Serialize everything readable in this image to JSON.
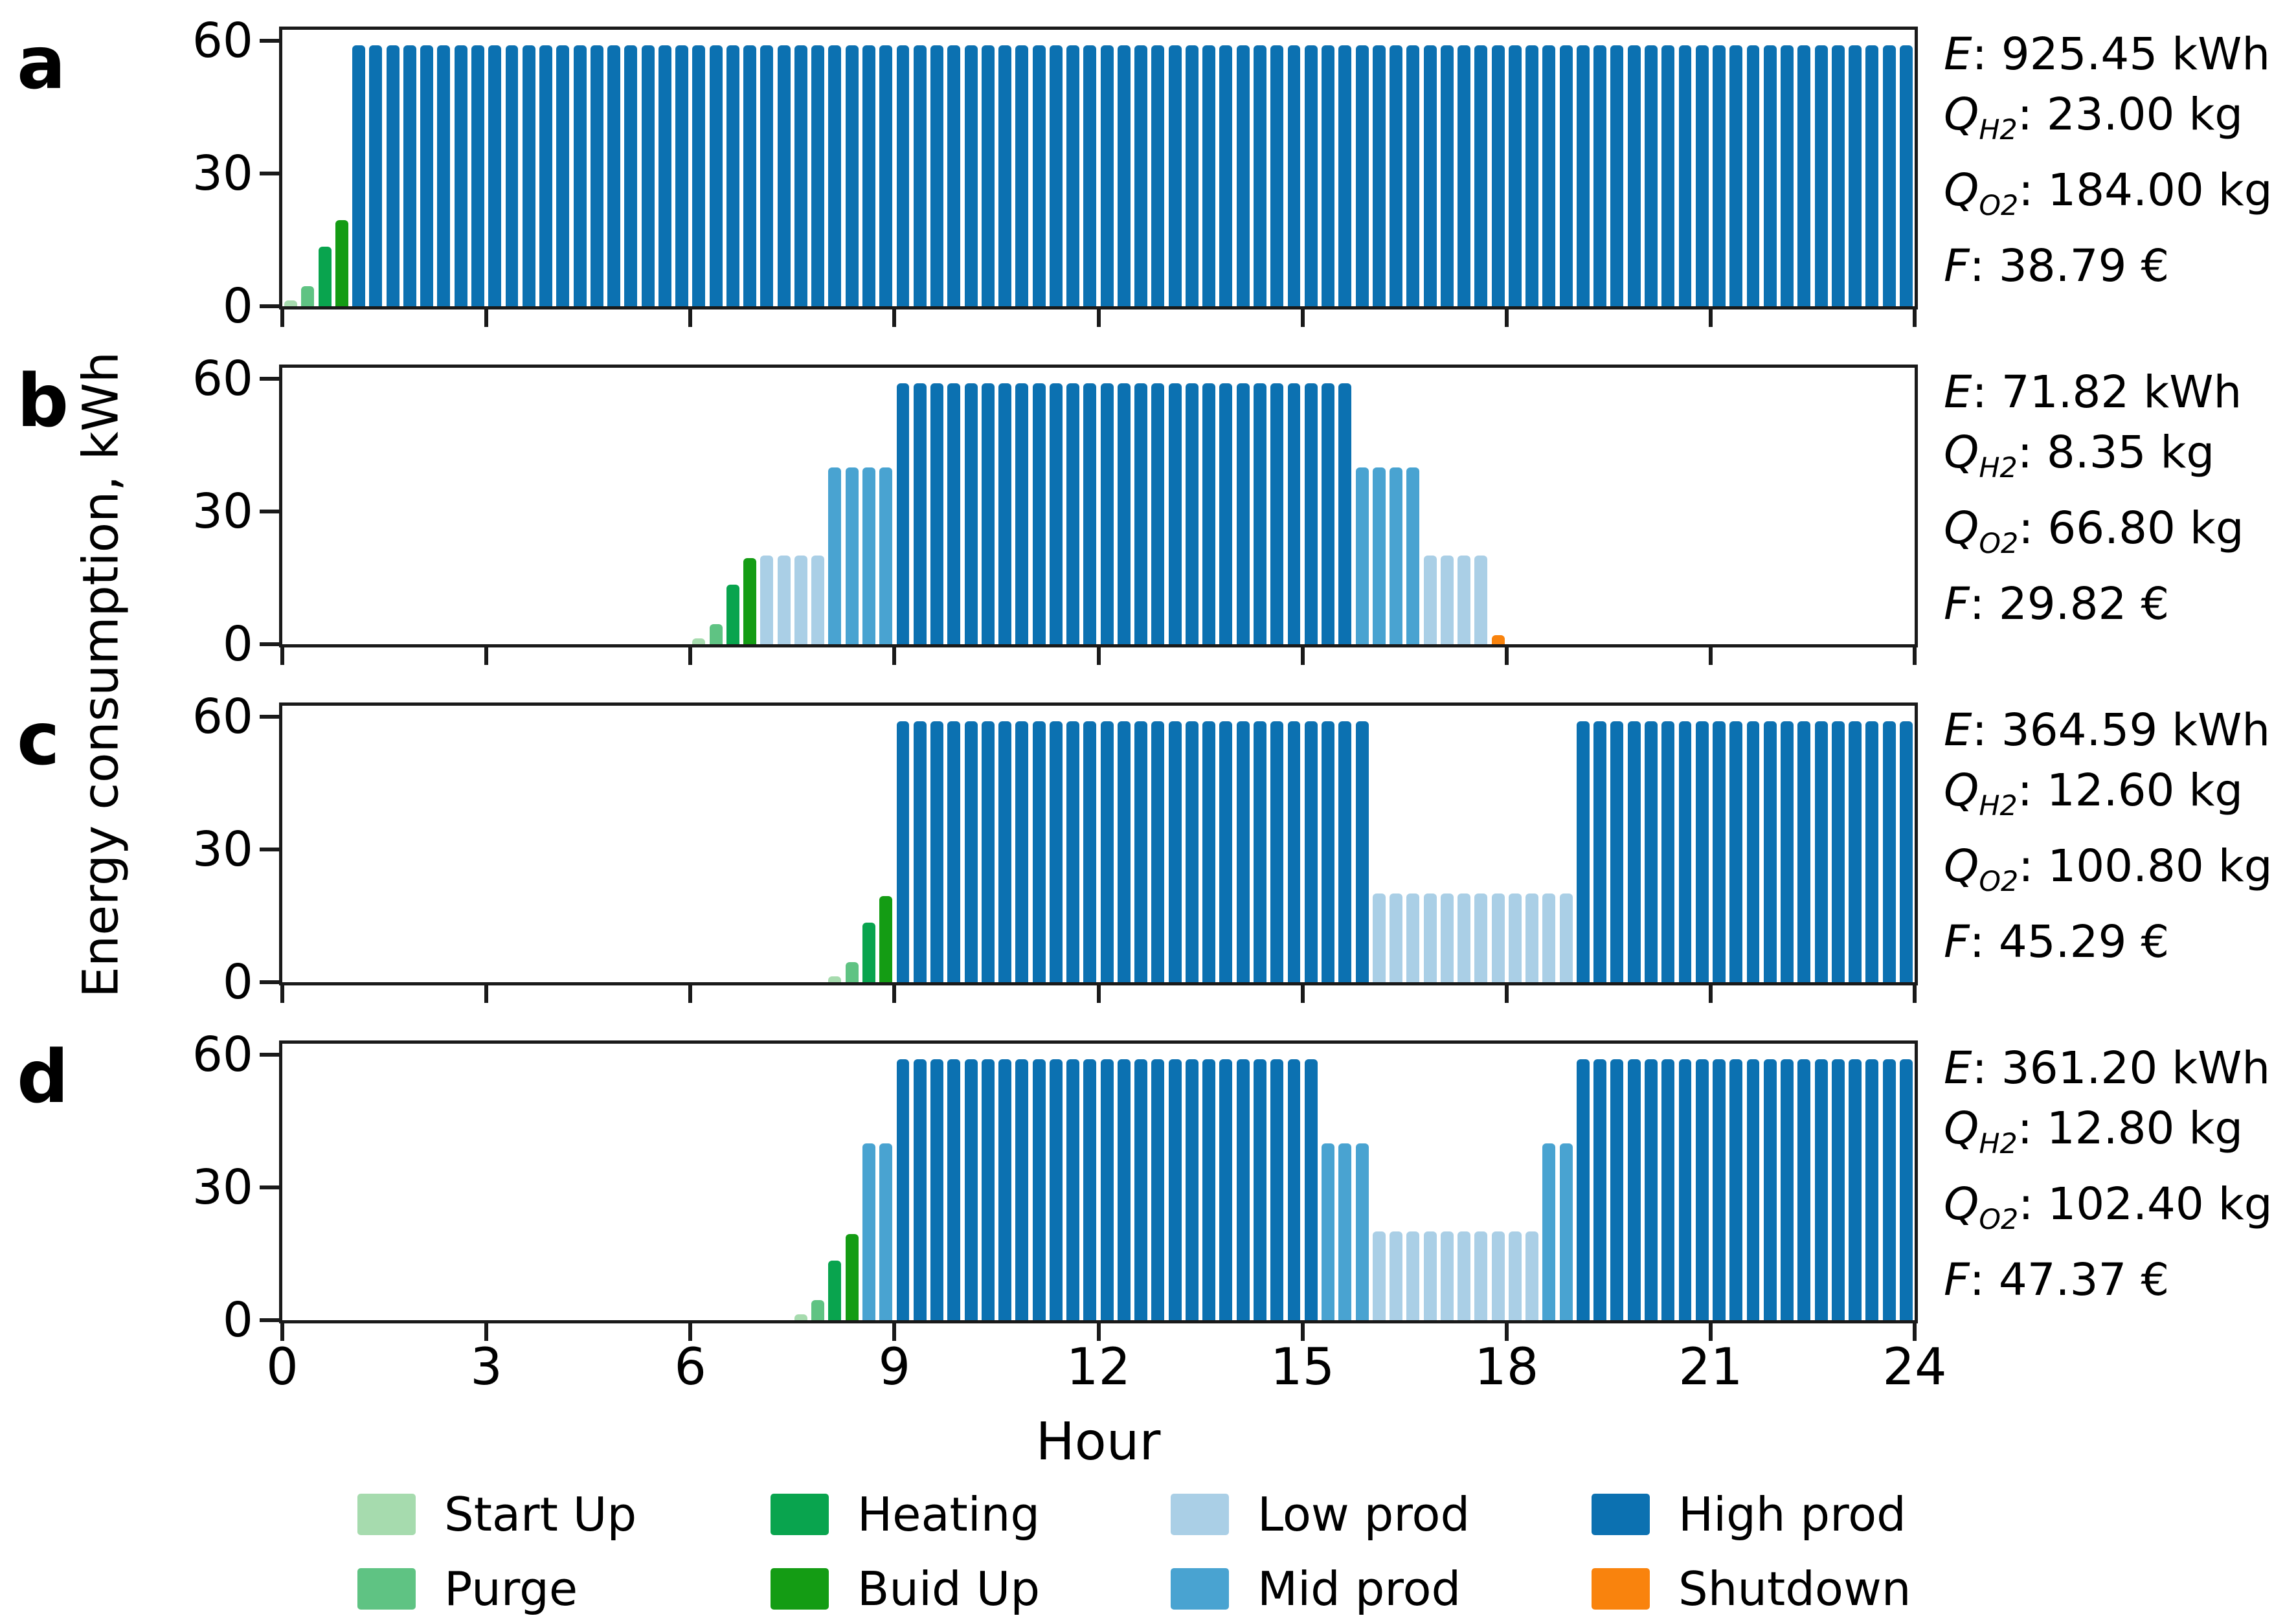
{
  "figure": {
    "xlabel": "Hour",
    "ylabel": "Energy consumption, kWh",
    "x_ticks": [
      0,
      3,
      6,
      9,
      12,
      15,
      18,
      21,
      24
    ],
    "y_ticks": [
      0,
      30,
      60
    ],
    "frame_color": "#1a1a1a",
    "background": "#ffffff"
  },
  "states": {
    "startup": {
      "label": "Start Up",
      "color": "#a6dbae",
      "value": 1.3
    },
    "purge": {
      "label": "Purge",
      "color": "#5fc383",
      "value": 4.5
    },
    "heating": {
      "label": "Heating",
      "color": "#09a44e",
      "value": 13.5
    },
    "buildup": {
      "label": "Buid Up",
      "color": "#149c14",
      "value": 19.5
    },
    "low": {
      "label": "Low prod",
      "color": "#aacfe6",
      "value": 20
    },
    "mid": {
      "label": "Mid prod",
      "color": "#49a3d1",
      "value": 40
    },
    "high": {
      "label": "High prod",
      "color": "#0c71b1",
      "value": 59
    },
    "shutdown": {
      "label": "Shutdown",
      "color": "#f9830d",
      "value": 2
    }
  },
  "legend": {
    "columns": [
      [
        "startup",
        "purge"
      ],
      [
        "heating",
        "buildup"
      ],
      [
        "low",
        "mid"
      ],
      [
        "high",
        "shutdown"
      ]
    ]
  },
  "chart_data": {
    "type": "bar",
    "x_step_hours": 0.25,
    "xlim": [
      0,
      24
    ],
    "ylim": [
      0,
      62.5
    ],
    "xlabel": "Hour",
    "ylabel": "Energy consumption, kWh",
    "legend_position": "bottom",
    "grid": false,
    "state_values_kWh": {
      "startup": 1.3,
      "purge": 4.5,
      "heating": 13.5,
      "buildup": 19.5,
      "low": 20,
      "mid": 40,
      "high": 59,
      "shutdown": 2
    },
    "panels": [
      {
        "label": "a",
        "annotations": [
          {
            "symbol": "E",
            "subscript": "",
            "value": "925.45 kWh"
          },
          {
            "symbol": "Q",
            "subscript": "H2",
            "value": "23.00 kg"
          },
          {
            "symbol": "Q",
            "subscript": "O2",
            "value": "184.00 kg"
          },
          {
            "symbol": "F",
            "subscript": "",
            "value": "38.79 €"
          }
        ],
        "segments": [
          {
            "state": "startup",
            "start": 0,
            "end": 0.25
          },
          {
            "state": "purge",
            "start": 0.25,
            "end": 0.5
          },
          {
            "state": "heating",
            "start": 0.5,
            "end": 0.75
          },
          {
            "state": "buildup",
            "start": 0.75,
            "end": 1
          },
          {
            "state": "high",
            "start": 1,
            "end": 24
          }
        ]
      },
      {
        "label": "b",
        "annotations": [
          {
            "symbol": "E",
            "subscript": "",
            "value": "71.82 kWh"
          },
          {
            "symbol": "Q",
            "subscript": "H2",
            "value": "8.35 kg"
          },
          {
            "symbol": "Q",
            "subscript": "O2",
            "value": "66.80 kg"
          },
          {
            "symbol": "F",
            "subscript": "",
            "value": "29.82 €"
          }
        ],
        "segments": [
          {
            "state": "startup",
            "start": 6,
            "end": 6.25
          },
          {
            "state": "purge",
            "start": 6.25,
            "end": 6.5
          },
          {
            "state": "heating",
            "start": 6.5,
            "end": 6.75
          },
          {
            "state": "buildup",
            "start": 6.75,
            "end": 7
          },
          {
            "state": "low",
            "start": 7,
            "end": 8
          },
          {
            "state": "mid",
            "start": 8,
            "end": 9
          },
          {
            "state": "high",
            "start": 9,
            "end": 15.75
          },
          {
            "state": "mid",
            "start": 15.75,
            "end": 16.75
          },
          {
            "state": "low",
            "start": 16.75,
            "end": 17.75
          },
          {
            "state": "shutdown",
            "start": 17.75,
            "end": 18
          }
        ]
      },
      {
        "label": "c",
        "annotations": [
          {
            "symbol": "E",
            "subscript": "",
            "value": "364.59 kWh"
          },
          {
            "symbol": "Q",
            "subscript": "H2",
            "value": "12.60 kg"
          },
          {
            "symbol": "Q",
            "subscript": "O2",
            "value": "100.80 kg"
          },
          {
            "symbol": "F",
            "subscript": "",
            "value": "45.29 €"
          }
        ],
        "segments": [
          {
            "state": "startup",
            "start": 8,
            "end": 8.25
          },
          {
            "state": "purge",
            "start": 8.25,
            "end": 8.5
          },
          {
            "state": "heating",
            "start": 8.5,
            "end": 8.75
          },
          {
            "state": "buildup",
            "start": 8.75,
            "end": 9
          },
          {
            "state": "high",
            "start": 9,
            "end": 16
          },
          {
            "state": "low",
            "start": 16,
            "end": 19
          },
          {
            "state": "high",
            "start": 19,
            "end": 24
          }
        ]
      },
      {
        "label": "d",
        "annotations": [
          {
            "symbol": "E",
            "subscript": "",
            "value": "361.20 kWh"
          },
          {
            "symbol": "Q",
            "subscript": "H2",
            "value": "12.80 kg"
          },
          {
            "symbol": "Q",
            "subscript": "O2",
            "value": "102.40 kg"
          },
          {
            "symbol": "F",
            "subscript": "",
            "value": "47.37 €"
          }
        ],
        "segments": [
          {
            "state": "startup",
            "start": 7.5,
            "end": 7.75
          },
          {
            "state": "purge",
            "start": 7.75,
            "end": 8
          },
          {
            "state": "heating",
            "start": 8,
            "end": 8.25
          },
          {
            "state": "buildup",
            "start": 8.25,
            "end": 8.5
          },
          {
            "state": "mid",
            "start": 8.5,
            "end": 9
          },
          {
            "state": "high",
            "start": 9,
            "end": 15.25
          },
          {
            "state": "mid",
            "start": 15.25,
            "end": 16
          },
          {
            "state": "low",
            "start": 16,
            "end": 18.5
          },
          {
            "state": "mid",
            "start": 18.5,
            "end": 19
          },
          {
            "state": "high",
            "start": 19,
            "end": 24
          }
        ]
      }
    ]
  }
}
